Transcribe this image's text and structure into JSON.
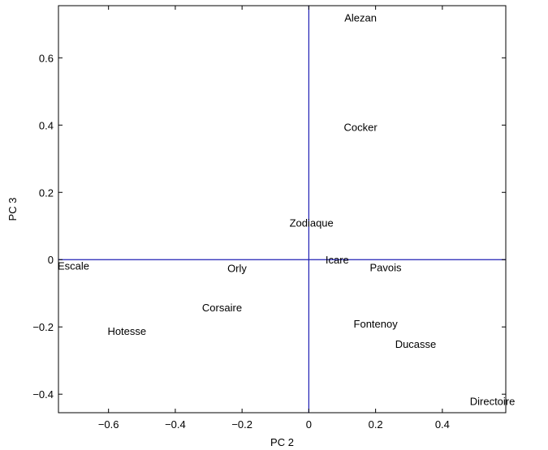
{
  "chart_data": {
    "type": "scatter",
    "title": "",
    "xlabel": "PC 2",
    "ylabel": "PC 3",
    "xlim": [
      -0.75,
      0.59
    ],
    "ylim": [
      -0.455,
      0.755
    ],
    "xticks": [
      -0.6,
      -0.4,
      -0.2,
      0,
      0.2,
      0.4
    ],
    "yticks": [
      -0.4,
      -0.2,
      0,
      0.2,
      0.4,
      0.6
    ],
    "xtick_labels": [
      "−0.6",
      "−0.4",
      "−0.2",
      "0",
      "0.2",
      "0.4"
    ],
    "ytick_labels": [
      "−0.4",
      "−0.2",
      "0",
      "0.2",
      "0.4",
      "0.6"
    ],
    "grid": false,
    "reference_lines": {
      "x": 0,
      "y": 0,
      "color": "#1f1fb4"
    },
    "points": [
      {
        "label": "Alezan",
        "x": 0.155,
        "y": 0.72
      },
      {
        "label": "Cocker",
        "x": 0.155,
        "y": 0.395
      },
      {
        "label": "Zodiaque",
        "x": 0.008,
        "y": 0.11
      },
      {
        "label": "Icare",
        "x": 0.085,
        "y": 0.0
      },
      {
        "label": "Pavois",
        "x": 0.23,
        "y": -0.022
      },
      {
        "label": "Escale",
        "x": -0.705,
        "y": -0.018
      },
      {
        "label": "Orly",
        "x": -0.215,
        "y": -0.025
      },
      {
        "label": "Corsaire",
        "x": -0.26,
        "y": -0.142
      },
      {
        "label": "Hotesse",
        "x": -0.545,
        "y": -0.212
      },
      {
        "label": "Fontenoy",
        "x": 0.2,
        "y": -0.19
      },
      {
        "label": "Ducasse",
        "x": 0.32,
        "y": -0.25
      },
      {
        "label": "Directoire",
        "x": 0.55,
        "y": -0.42
      }
    ]
  }
}
